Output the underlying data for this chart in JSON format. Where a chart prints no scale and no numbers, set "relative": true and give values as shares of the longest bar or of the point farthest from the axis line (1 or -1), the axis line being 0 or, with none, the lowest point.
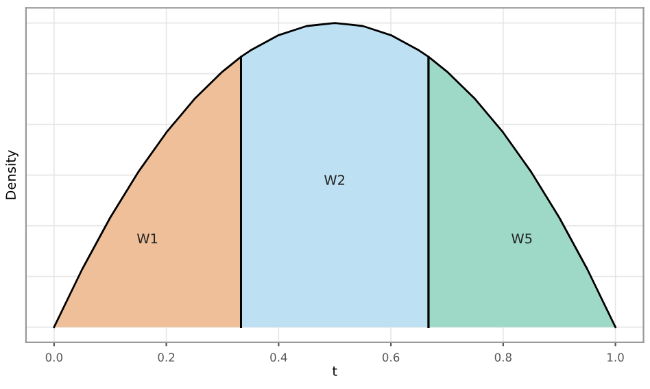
{
  "chart_data": {
    "type": "area",
    "xlabel": "t",
    "ylabel": "Density",
    "relative": true,
    "series": [
      {
        "name": "W1",
        "color": "#eebf98",
        "x": [
          0,
          0.05,
          0.1,
          0.15,
          0.2,
          0.25,
          0.3,
          0.333
        ],
        "values": [
          0,
          0.19,
          0.36,
          0.51,
          0.64,
          0.75,
          0.84,
          0.889
        ]
      },
      {
        "name": "W2",
        "color": "#bde0f3",
        "x": [
          0.333,
          0.35,
          0.4,
          0.45,
          0.5,
          0.55,
          0.6,
          0.65,
          0.667
        ],
        "values": [
          0.889,
          0.91,
          0.96,
          0.99,
          1,
          0.99,
          0.96,
          0.91,
          0.889
        ]
      },
      {
        "name": "W5",
        "color": "#9ed8c6",
        "x": [
          0.667,
          0.7,
          0.75,
          0.8,
          0.85,
          0.9,
          0.95,
          1.0
        ],
        "values": [
          0.889,
          0.84,
          0.75,
          0.64,
          0.51,
          0.36,
          0.19,
          0
        ]
      }
    ],
    "xlim": [
      -0.05,
      1.05
    ],
    "xticks": [
      {
        "value": 0,
        "label": "0.0"
      },
      0.2,
      0.4,
      0.6,
      0.8,
      {
        "value": 1,
        "label": "1.0"
      }
    ],
    "grid": true,
    "tick_labels": "x"
  }
}
